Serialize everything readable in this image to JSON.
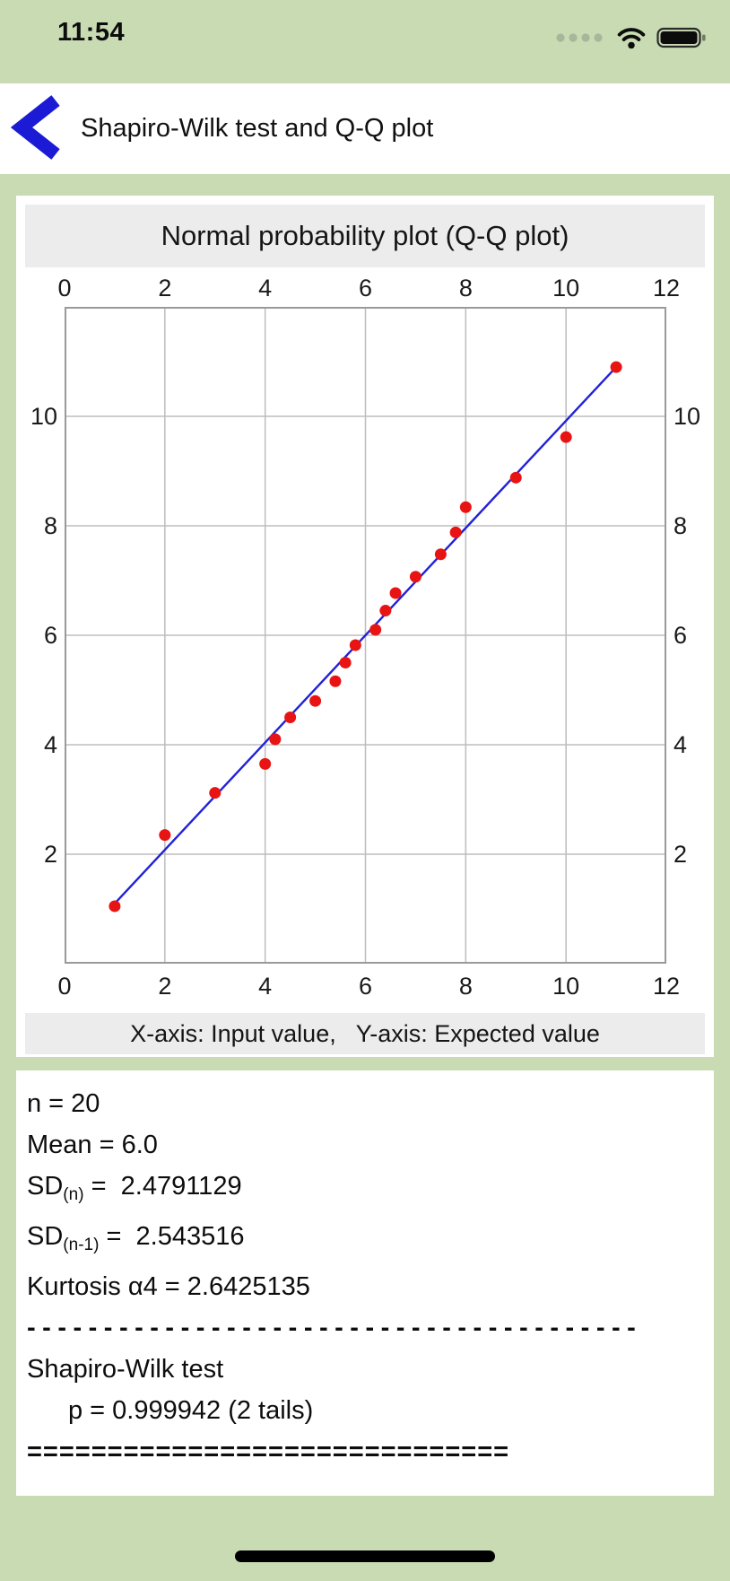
{
  "status_bar": {
    "time": "11:54",
    "icons": [
      "cellular-dots-icon",
      "wifi-icon",
      "battery-icon"
    ]
  },
  "nav": {
    "back_label": "<",
    "title": "Shapiro-Wilk test and Q-Q plot"
  },
  "chart": {
    "title": "Normal probability plot (Q-Q plot)",
    "footer": "X-axis: Input value,   Y-axis: Expected value"
  },
  "chart_data": {
    "type": "scatter",
    "title": "Normal probability plot (Q-Q plot)",
    "xlabel": "Input value",
    "ylabel": "Expected value",
    "xlim": [
      0,
      12
    ],
    "ylim": [
      0,
      12
    ],
    "x_ticks": [
      0,
      2,
      4,
      6,
      8,
      10,
      12
    ],
    "y_ticks": [
      10,
      8,
      6,
      4,
      2
    ],
    "grid": true,
    "points": [
      [
        1,
        1.05
      ],
      [
        2,
        2.35
      ],
      [
        3,
        3.12
      ],
      [
        4,
        3.65
      ],
      [
        4.2,
        4.1
      ],
      [
        4.5,
        4.5
      ],
      [
        5,
        4.8
      ],
      [
        5.4,
        5.16
      ],
      [
        5.6,
        5.5
      ],
      [
        5.8,
        5.82
      ],
      [
        6.2,
        6.1
      ],
      [
        6.4,
        6.45
      ],
      [
        6.6,
        6.77
      ],
      [
        7,
        7.07
      ],
      [
        7.5,
        7.48
      ],
      [
        7.8,
        7.88
      ],
      [
        8,
        8.34
      ],
      [
        9,
        8.88
      ],
      [
        10,
        9.62
      ],
      [
        11,
        10.9
      ]
    ],
    "reference_line": {
      "x1": 1,
      "y1": 1.1,
      "x2": 11,
      "y2": 10.9
    },
    "point_color": "#e81414",
    "line_color": "#2121d8",
    "grid_color": "#bdbdbd",
    "frame_color": "#9a9a9a"
  },
  "stats": {
    "lines": [
      {
        "kind": "text",
        "text": "n = 20"
      },
      {
        "kind": "text",
        "text": "Mean = 6.0"
      },
      {
        "kind": "sub",
        "prefix": "SD",
        "sub": "(n)",
        "rest": " =  2.4791129"
      },
      {
        "kind": "sub",
        "prefix": "SD",
        "sub": "(n-1)",
        "rest": " =  2.543516"
      },
      {
        "kind": "text",
        "text": "Kurtosis α4 = 2.6425135"
      },
      {
        "kind": "dashes",
        "text": "----------------------------------------"
      },
      {
        "kind": "text",
        "text": "Shapiro-Wilk test"
      },
      {
        "kind": "indent",
        "text": "p = 0.999942 (2 tails)"
      },
      {
        "kind": "equals",
        "text": "=============================="
      }
    ]
  },
  "colors": {
    "background_green": "#c8dbb2",
    "panel_white": "#ffffff",
    "band_gray": "#ececec",
    "accent_blue": "#1b1bd6",
    "point_red": "#e81414",
    "text_black": "#0d0d0d"
  }
}
